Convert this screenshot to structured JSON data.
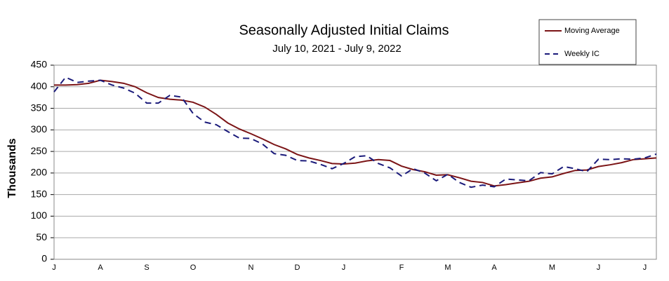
{
  "chart_data": {
    "type": "line",
    "title": "Seasonally Adjusted Initial Claims",
    "subtitle": "July 10, 2021 - July 9, 2022",
    "ylabel": "Thousands",
    "categories": [
      "J",
      null,
      null,
      null,
      "A",
      null,
      null,
      null,
      "S",
      null,
      null,
      null,
      "O",
      null,
      null,
      null,
      null,
      "N",
      null,
      null,
      null,
      "D",
      null,
      null,
      null,
      "J",
      null,
      null,
      null,
      null,
      "F",
      null,
      null,
      null,
      "M",
      null,
      null,
      null,
      "A",
      null,
      null,
      null,
      null,
      "M",
      null,
      null,
      null,
      "J",
      null,
      null,
      null,
      "J",
      null
    ],
    "series": [
      {
        "name": "Moving Average",
        "color": "#7b1416",
        "dashed": false,
        "values": [
          404,
          404,
          405,
          408,
          415,
          412,
          408,
          400,
          386,
          375,
          371,
          369,
          364,
          353,
          336,
          316,
          302,
          291,
          279,
          266,
          256,
          243,
          235,
          229,
          222,
          221,
          223,
          228,
          231,
          229,
          216,
          208,
          203,
          195,
          196,
          189,
          181,
          178,
          170,
          173,
          177,
          181,
          188,
          191,
          199,
          206,
          207,
          215,
          219,
          224,
          231,
          233,
          235
        ]
      },
      {
        "name": "Weekly IC",
        "color": "#1a1a7a",
        "dashed": true,
        "values": [
          388,
          422,
          410,
          413,
          415,
          404,
          397,
          385,
          362,
          362,
          380,
          376,
          338,
          318,
          312,
          296,
          281,
          280,
          267,
          245,
          241,
          229,
          228,
          220,
          210,
          222,
          238,
          240,
          222,
          212,
          193,
          210,
          200,
          182,
          197,
          178,
          167,
          172,
          168,
          186,
          184,
          182,
          201,
          198,
          215,
          210,
          203,
          232,
          231,
          233,
          232,
          235,
          244
        ]
      }
    ],
    "ylim": [
      0,
      450
    ],
    "yticks": [
      0,
      50,
      100,
      150,
      200,
      250,
      300,
      350,
      400,
      450
    ],
    "grid": true,
    "legend": "top-right"
  }
}
